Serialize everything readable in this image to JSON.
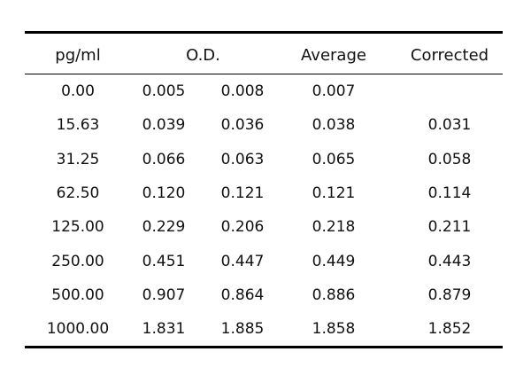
{
  "table": {
    "headers": {
      "concentration": "pg/ml",
      "od": "O.D.",
      "average": "Average",
      "corrected": "Corrected"
    },
    "rows": [
      {
        "conc": "0.00",
        "od1": "0.005",
        "od2": "0.008",
        "avg": "0.007",
        "corr": ""
      },
      {
        "conc": "15.63",
        "od1": "0.039",
        "od2": "0.036",
        "avg": "0.038",
        "corr": "0.031"
      },
      {
        "conc": "31.25",
        "od1": "0.066",
        "od2": "0.063",
        "avg": "0.065",
        "corr": "0.058"
      },
      {
        "conc": "62.50",
        "od1": "0.120",
        "od2": "0.121",
        "avg": "0.121",
        "corr": "0.114"
      },
      {
        "conc": "125.00",
        "od1": "0.229",
        "od2": "0.206",
        "avg": "0.218",
        "corr": "0.211"
      },
      {
        "conc": "250.00",
        "od1": "0.451",
        "od2": "0.447",
        "avg": "0.449",
        "corr": "0.443"
      },
      {
        "conc": "500.00",
        "od1": "0.907",
        "od2": "0.864",
        "avg": "0.886",
        "corr": "0.879"
      },
      {
        "conc": "1000.00",
        "od1": "1.831",
        "od2": "1.885",
        "avg": "1.858",
        "corr": "1.852"
      }
    ]
  }
}
